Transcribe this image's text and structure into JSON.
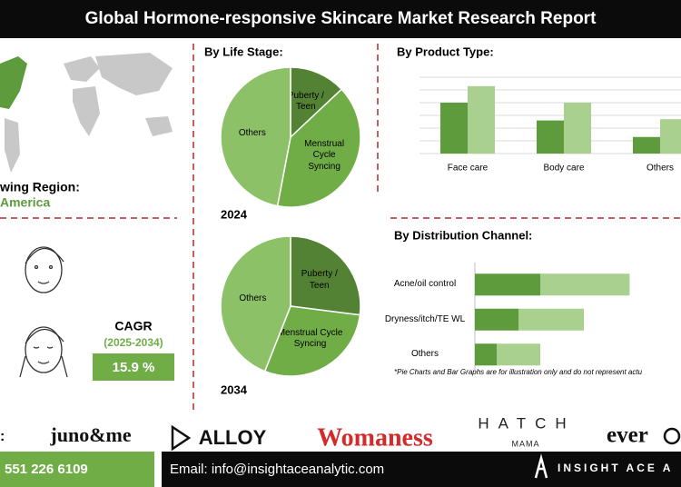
{
  "header": {
    "title": "Global Hormone-responsive Skincare Market Research Report"
  },
  "region": {
    "label": "wing Region:",
    "value": "America"
  },
  "cagr": {
    "label": "CAGR",
    "period": "(2025-2034)",
    "value": "15.9 %"
  },
  "brands": [
    "juno&me",
    "ALLOY",
    "Womaness",
    "HATCH",
    "MAMA",
    "ever"
  ],
  "footer": {
    "prefix": ":",
    "phone": "551 226 6109",
    "email": "Email: info@insightaceanalytic.com",
    "company": "INSIGHT ACE A"
  },
  "note": "*Pie Charts and Bar Graphs are for illustration only and do not represent actu",
  "chart_data": [
    {
      "type": "pie",
      "title": "By Life Stage:",
      "year": "2024",
      "labels": [
        "Puberty / Teen",
        "Menstrual Cycle Syncing",
        "Others"
      ],
      "values": [
        13,
        40,
        47
      ],
      "colors": [
        "#548235",
        "#70ad47",
        "#8cc168"
      ]
    },
    {
      "type": "pie",
      "year": "2034",
      "labels": [
        "Puberty / Teen",
        "Menstrual Cycle Syncing",
        "Others"
      ],
      "values": [
        27,
        29,
        44
      ],
      "colors": [
        "#548235",
        "#70ad47",
        "#8cc168"
      ]
    },
    {
      "type": "bar",
      "title": "By Product Type:",
      "categories": [
        "Face care",
        "Body care",
        "Others"
      ],
      "series": [
        {
          "color": "#5e9b3d",
          "values": [
            4,
            2.6,
            1.3
          ]
        },
        {
          "color": "#a9d08e",
          "values": [
            5.3,
            4,
            2.7
          ]
        }
      ],
      "ylim": [
        0,
        6
      ],
      "yticks": [
        0,
        1,
        2,
        3,
        4,
        5,
        6
      ],
      "grid": true
    },
    {
      "type": "stacked-hbar",
      "title": "By Distribution Channel:",
      "categories": [
        "Acne/oil control",
        "Dryness/itch/TE WL",
        "Others"
      ],
      "series": [
        {
          "color": "#5e9b3d",
          "values": [
            3,
            2,
            1
          ]
        },
        {
          "color": "#a9d08e",
          "values": [
            4.1,
            3,
            2
          ]
        }
      ],
      "xlim": [
        0,
        10
      ]
    }
  ]
}
